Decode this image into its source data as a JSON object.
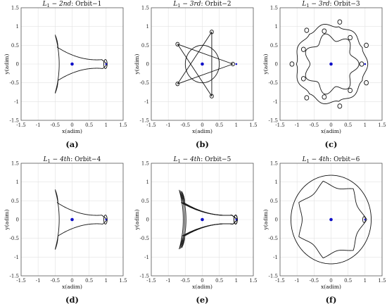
{
  "chart_data": [
    {
      "type": "line",
      "title_prefix": "L",
      "title_sub": "1",
      "title_dash": " − ",
      "title_order": "2nd",
      "title_suffix": ": Orbit−1",
      "caption": "(a)",
      "xlabel": "x(adim)",
      "ylabel": "y(adim)",
      "xlim": [
        -1.5,
        1.5
      ],
      "ylim": [
        -1.5,
        1.5
      ],
      "xticks": [
        "-1.5",
        "-1",
        "-0.5",
        "0",
        "0.5",
        "1",
        "1.5"
      ],
      "yticks": [
        "1.5",
        "1",
        "0.5",
        "0",
        "-0.5",
        "-1",
        "-1.5"
      ],
      "grid": true,
      "primary_point": {
        "x": 0,
        "y": 0,
        "color": "#1010c8"
      },
      "secondary_point": {
        "x": 1,
        "y": 0,
        "color": "#1010c8"
      },
      "series": [
        {
          "shape": "cusp-triangle",
          "x_left": -0.5,
          "tip_y": 0.78,
          "right_x": 1.0,
          "loops": 2
        }
      ]
    },
    {
      "type": "line",
      "title_prefix": "L",
      "title_sub": "1",
      "title_dash": " − ",
      "title_order": "3rd",
      "title_suffix": ": Orbit−2",
      "caption": "(b)",
      "xlabel": "x(adim)",
      "ylabel": "y(adim)",
      "xlim": [
        -1.5,
        1.5
      ],
      "ylim": [
        -1.5,
        1.5
      ],
      "xticks": [
        "-1.5",
        "-1",
        "-0.5",
        "0",
        "0.5",
        "1",
        "1.5"
      ],
      "yticks": [
        "1.5",
        "1",
        "0.5",
        "0",
        "-0.5",
        "-1",
        "-1.5"
      ],
      "grid": true,
      "primary_point": {
        "x": 0,
        "y": 0,
        "color": "#1010c8"
      },
      "secondary_point": {
        "x": 1,
        "y": 0,
        "color": "#1010c8"
      },
      "series": [
        {
          "shape": "pentagon-star",
          "radius": 0.9,
          "lobes": 5
        }
      ]
    },
    {
      "type": "line",
      "title_prefix": "L",
      "title_sub": "1",
      "title_dash": " − ",
      "title_order": "3rd",
      "title_suffix": ": Orbit−3",
      "caption": "(c)",
      "xlabel": "x(adim)",
      "ylabel": "y(adim)",
      "xlim": [
        -1.5,
        1.5
      ],
      "ylim": [
        -1.5,
        1.5
      ],
      "xticks": [
        "-1.5",
        "-1",
        "-0.5",
        "0",
        "0.5",
        "1",
        "1.5"
      ],
      "yticks": [
        "1.5",
        "1",
        "0.5",
        "0",
        "-0.5",
        "-1",
        "-1.5"
      ],
      "grid": true,
      "primary_point": {
        "x": 0,
        "y": 0,
        "color": "#1010c8"
      },
      "secondary_point": {
        "x": 1,
        "y": 0,
        "color": "#1010c8"
      },
      "series": [
        {
          "shape": "looped-ring",
          "radius": 1.12,
          "lobes": 7
        }
      ]
    },
    {
      "type": "line",
      "title_prefix": "L",
      "title_sub": "1",
      "title_dash": " − ",
      "title_order": "4th",
      "title_suffix": ": Orbit−4",
      "caption": "(d)",
      "xlabel": "x(adim)",
      "ylabel": "y(adim)",
      "xlim": [
        -1.5,
        1.5
      ],
      "ylim": [
        -1.5,
        1.5
      ],
      "xticks": [
        "-1.5",
        "-1",
        "-0.5",
        "0",
        "0.5",
        "1",
        "1.5"
      ],
      "yticks": [
        "1.5",
        "1",
        "0.5",
        "0",
        "-0.5",
        "-1",
        "-1.5"
      ],
      "grid": true,
      "primary_point": {
        "x": 0,
        "y": 0,
        "color": "#1010c8"
      },
      "secondary_point": {
        "x": 1,
        "y": 0,
        "color": "#1010c8"
      },
      "series": [
        {
          "shape": "cusp-triangle",
          "x_left": -0.5,
          "tip_y": 0.8,
          "right_x": 1.0,
          "loops": 2
        }
      ]
    },
    {
      "type": "line",
      "title_prefix": "L",
      "title_sub": "1",
      "title_dash": " − ",
      "title_order": "4th",
      "title_suffix": ": Orbit−5",
      "caption": "(e)",
      "xlabel": "x(adim)",
      "ylabel": "y(adim)",
      "xlim": [
        -1.5,
        1.5
      ],
      "ylim": [
        -1.5,
        1.5
      ],
      "xticks": [
        "-1.5",
        "-1",
        "-0.5",
        "0",
        "0.5",
        "1",
        "1.5"
      ],
      "yticks": [
        "1.5",
        "1",
        "0.5",
        "0",
        "-0.5",
        "-1",
        "-1.5"
      ],
      "grid": true,
      "primary_point": {
        "x": 0,
        "y": 0,
        "color": "#1010c8"
      },
      "secondary_point": {
        "x": 1,
        "y": 0,
        "color": "#1010c8"
      },
      "series": [
        {
          "shape": "multi-cusp",
          "x_left": -0.6,
          "tip_y": 0.75,
          "right_x": 1.0,
          "loops": 3
        }
      ]
    },
    {
      "type": "line",
      "title_prefix": "L",
      "title_sub": "1",
      "title_dash": " − ",
      "title_order": "4th",
      "title_suffix": ": Orbit−6",
      "caption": "(f)",
      "xlabel": "x(adim)",
      "ylabel": "y(adim)",
      "xlim": [
        -1.5,
        1.5
      ],
      "ylim": [
        -1.5,
        1.5
      ],
      "xticks": [
        "-1.5",
        "-1",
        "-0.5",
        "0",
        "0.5",
        "1",
        "1.5"
      ],
      "yticks": [
        "1.5",
        "1",
        "0.5",
        "0",
        "-0.5",
        "-1",
        "-1.5"
      ],
      "grid": true,
      "primary_point": {
        "x": 0,
        "y": 0,
        "color": "#1010c8"
      },
      "secondary_point": {
        "x": 1,
        "y": 0,
        "color": "#1010c8"
      },
      "series": [
        {
          "shape": "scalloped-circle",
          "radius": 1.05,
          "lobes": 7
        }
      ]
    }
  ]
}
